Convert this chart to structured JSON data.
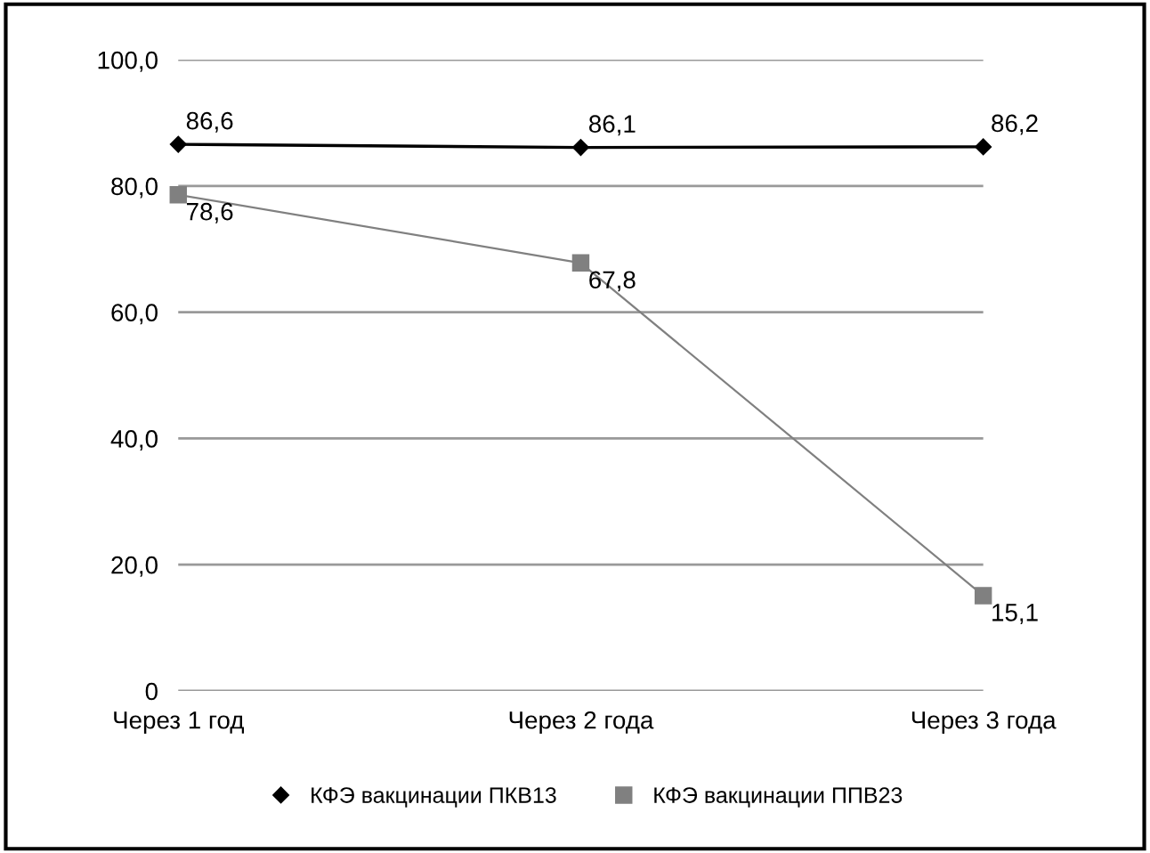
{
  "chart_data": {
    "type": "line",
    "categories": [
      "Через 1 год",
      "Через 2 года",
      "Через 3 года"
    ],
    "series": [
      {
        "name": "КФЭ вакцинации ПКВ13",
        "color": "#000000",
        "marker": "diamond",
        "values": [
          86.6,
          86.1,
          86.2
        ],
        "value_labels": [
          "86,6",
          "86,1",
          "86,2"
        ]
      },
      {
        "name": "КФЭ вакцинации ППВ23",
        "color": "#808080",
        "marker": "square",
        "values": [
          78.6,
          67.8,
          15.1
        ],
        "value_labels": [
          "78,6",
          "67,8",
          "15,1"
        ]
      }
    ],
    "ylim": [
      0,
      100
    ],
    "yticks": [
      {
        "value": 0,
        "label": "0"
      },
      {
        "value": 20,
        "label": "20,0"
      },
      {
        "value": 40,
        "label": "40,0"
      },
      {
        "value": 60,
        "label": "60,0"
      },
      {
        "value": 80,
        "label": "80,0"
      },
      {
        "value": 100,
        "label": "100,0"
      }
    ],
    "grid": "y",
    "legend": "bottom",
    "line_style": "solid"
  }
}
